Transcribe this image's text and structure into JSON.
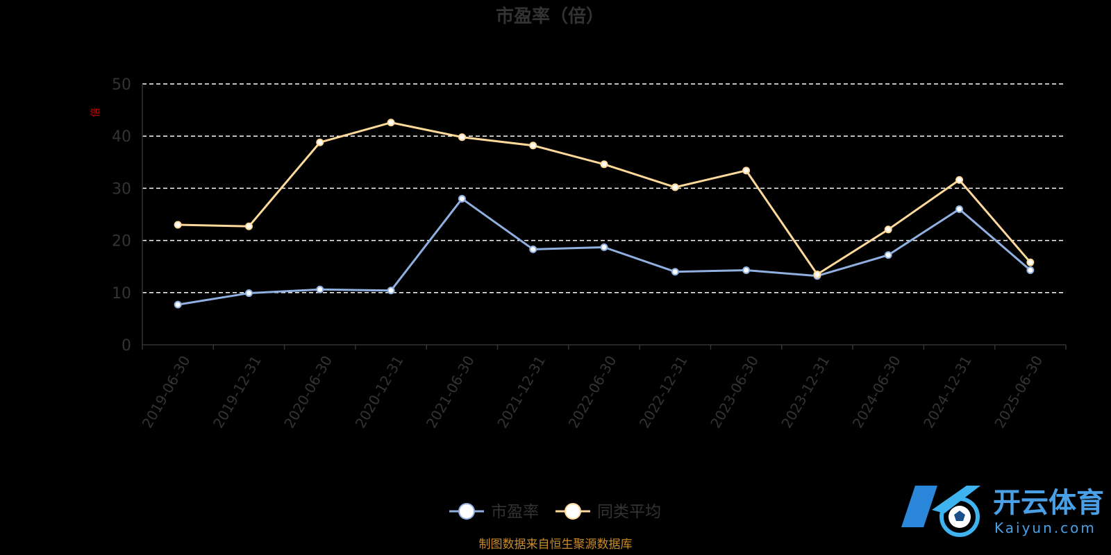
{
  "chart_data": {
    "type": "line",
    "title": "市盈率（倍）",
    "ylabel": "倍",
    "ylim": [
      0,
      50
    ],
    "yticks": [
      0,
      10,
      20,
      30,
      40,
      50
    ],
    "grid": true,
    "legend_position": "bottom",
    "categories": [
      "2019-06-30",
      "2019-12-31",
      "2020-06-30",
      "2020-12-31",
      "2021-06-30",
      "2021-12-31",
      "2022-06-30",
      "2022-12-31",
      "2023-06-30",
      "2023-12-31",
      "2024-06-30",
      "2024-12-31",
      "2025-06-30"
    ],
    "series": [
      {
        "name": "市盈率",
        "color": "#8fb0e0",
        "values": [
          7.7,
          9.9,
          10.6,
          10.4,
          28.0,
          18.3,
          18.7,
          14.0,
          14.3,
          13.2,
          17.2,
          26.0,
          14.3
        ]
      },
      {
        "name": "同类平均",
        "color": "#ffd99a",
        "values": [
          23.0,
          22.7,
          38.8,
          42.6,
          39.8,
          38.2,
          34.6,
          30.2,
          33.4,
          13.5,
          22.1,
          31.6,
          15.8
        ]
      }
    ]
  },
  "footer": "制图数据来自恒生聚源数据库",
  "brand": {
    "name": "开云体育",
    "sub": "Kaiyun.com",
    "logo_icon": "k-football-logo-icon"
  }
}
